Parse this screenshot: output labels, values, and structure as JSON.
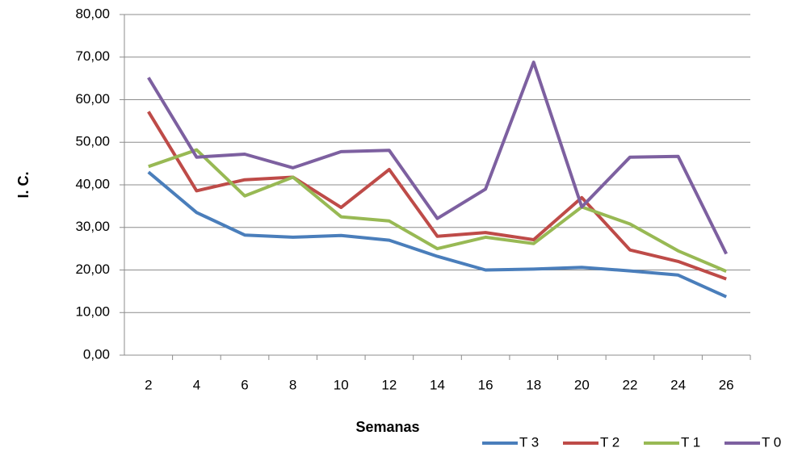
{
  "chart_data": {
    "type": "line",
    "y_label": "I. C.",
    "x_label": "Semanas",
    "categories": [
      "2",
      "4",
      "6",
      "8",
      "10",
      "12",
      "14",
      "16",
      "18",
      "20",
      "22",
      "24",
      "26"
    ],
    "series": [
      {
        "name": "T 3",
        "color": "#4a7ebb",
        "values": [
          43.0,
          33.5,
          28.2,
          27.7,
          28.1,
          27.0,
          23.2,
          20.0,
          20.2,
          20.6,
          19.8,
          18.8,
          13.7
        ]
      },
      {
        "name": "T 2",
        "color": "#be4b48",
        "values": [
          57.2,
          38.6,
          41.2,
          41.8,
          34.7,
          43.6,
          27.9,
          28.8,
          27.1,
          37.0,
          24.7,
          22.0,
          17.9
        ]
      },
      {
        "name": "T 1",
        "color": "#98b954",
        "values": [
          44.3,
          48.2,
          37.4,
          41.8,
          32.5,
          31.5,
          25.0,
          27.7,
          26.2,
          34.8,
          30.8,
          24.5,
          19.7
        ]
      },
      {
        "name": "T 0",
        "color": "#7d60a0",
        "values": [
          65.2,
          46.5,
          47.2,
          44.0,
          47.8,
          48.1,
          32.1,
          39.0,
          68.8,
          34.8,
          46.5,
          46.7,
          23.8
        ]
      }
    ],
    "ylim": [
      0,
      80
    ],
    "yticks": [
      {
        "value": 0,
        "label": "0,00"
      },
      {
        "value": 10,
        "label": "10,00"
      },
      {
        "value": 20,
        "label": "20,00"
      },
      {
        "value": 30,
        "label": "30,00"
      },
      {
        "value": 40,
        "label": "40,00"
      },
      {
        "value": 50,
        "label": "50,00"
      },
      {
        "value": 60,
        "label": "60,00"
      },
      {
        "value": 70,
        "label": "70,00"
      },
      {
        "value": 80,
        "label": "80,00"
      }
    ],
    "grid": true,
    "legend": "bottom-right"
  }
}
